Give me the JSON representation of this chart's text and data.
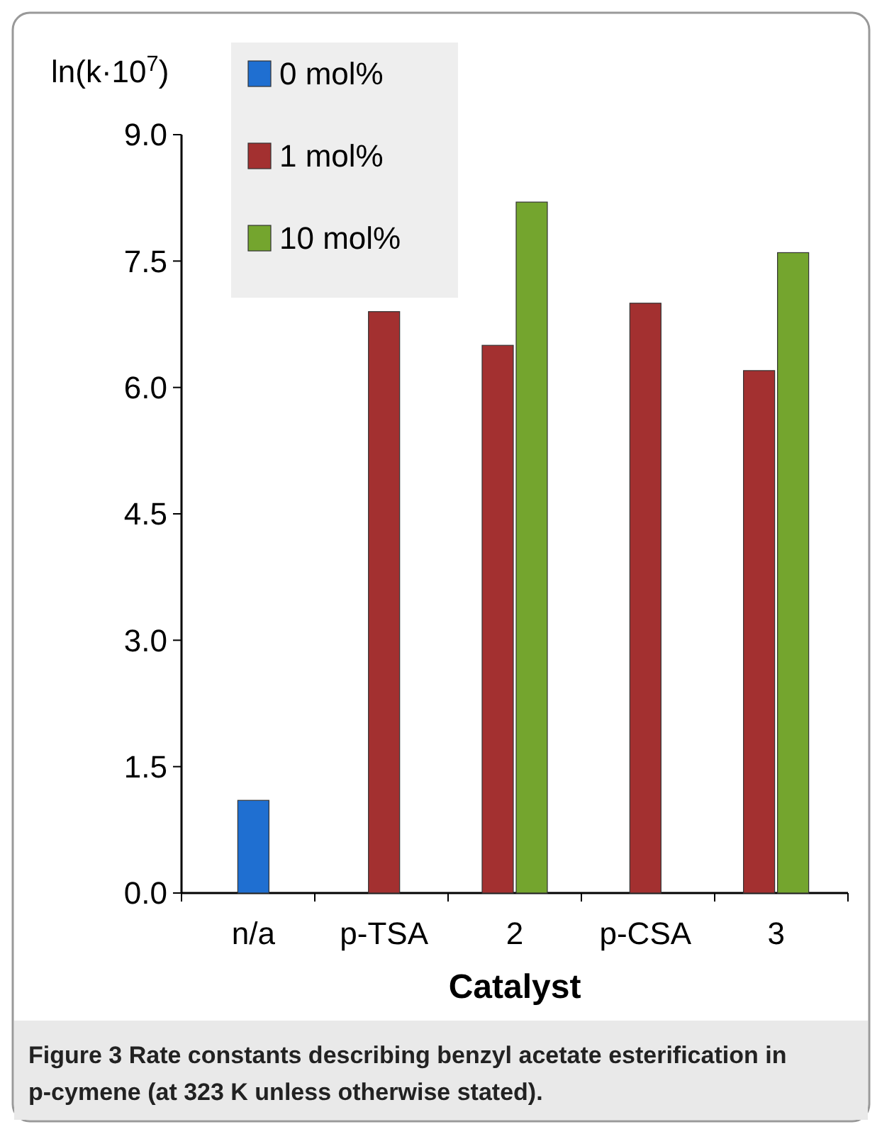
{
  "chart_data": {
    "type": "bar",
    "ylabel": "ln(k·10$^{7}$)",
    "xlabel": "Catalyst",
    "categories": [
      "n/a",
      "p-TSA",
      "2",
      "p-CSA",
      "3"
    ],
    "series": [
      {
        "name": "0 mol%",
        "color": "#1f6fd1",
        "values": [
          1.1,
          null,
          null,
          null,
          null
        ]
      },
      {
        "name": "1 mol%",
        "color": "#a33030",
        "values": [
          null,
          6.9,
          6.5,
          7.0,
          6.2
        ]
      },
      {
        "name": "10 mol%",
        "color": "#74a52e",
        "values": [
          null,
          null,
          8.2,
          null,
          7.6
        ]
      }
    ],
    "ylim": [
      0,
      9
    ],
    "yticks": [
      {
        "value": 0,
        "label": "0.0"
      },
      {
        "value": 1.5,
        "label": "1.5"
      },
      {
        "value": 3,
        "label": "3.0"
      },
      {
        "value": 4.5,
        "label": "4.5"
      },
      {
        "value": 6,
        "label": "6.0"
      },
      {
        "value": 7.5,
        "label": "7.5"
      },
      {
        "value": 9,
        "label": "9.0"
      }
    ],
    "grid": false,
    "legend": "top left",
    "annotations": [
      "Figure 3 Rate constants describing benzyl acetate esterification in p-cymene (at 323 K unless otherwise stated)."
    ]
  }
}
